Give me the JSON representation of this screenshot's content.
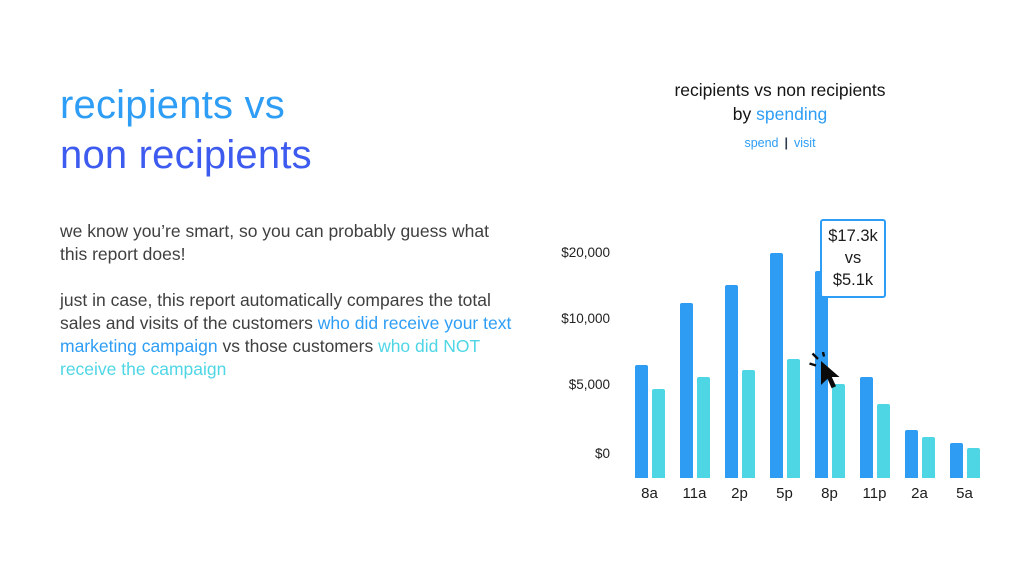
{
  "colors": {
    "blue": "#2e9df5",
    "indigo": "#3e5bf0",
    "cyan": "#4fd6e5",
    "recipients": "#2f9cf4",
    "non_recipients": "#4fd6e5"
  },
  "left": {
    "heading_line1": "recipients vs",
    "heading_line2": "non recipients",
    "para1": "we know you’re smart, so you can probably guess what this report does!",
    "para2_segments": [
      {
        "text": "just in case, this report automatically compares the total sales and visits of the customers ",
        "style": "normal"
      },
      {
        "text": "who did receive your text marketing campaign",
        "style": "blue"
      },
      {
        "text": " vs those customers ",
        "style": "normal"
      },
      {
        "text": "who did NOT receive the campaign",
        "style": "cyan"
      }
    ]
  },
  "chart_header": {
    "title": "recipients vs non recipients",
    "subtitle_prefix": "by ",
    "subtitle_highlight": "spending",
    "legend_spend": "spend",
    "legend_divider": "|",
    "legend_visit": "visit"
  },
  "chart_data": {
    "type": "bar",
    "title": "recipients vs non recipients by spending",
    "categories": [
      "8a",
      "11a",
      "2p",
      "5p",
      "8p",
      "11p",
      "2a",
      "5a"
    ],
    "series": [
      {
        "name": "recipients spend",
        "color_key": "recipients",
        "values": [
          6500,
          12400,
          15200,
          20000,
          17300,
          5600,
          2600,
          1900
        ]
      },
      {
        "name": "non recipients spend",
        "color_key": "non_recipients",
        "values": [
          4800,
          5600,
          6100,
          7000,
          5100,
          4000,
          2200,
          1600
        ]
      }
    ],
    "y_axis": {
      "ticks": [
        {
          "label": "$0",
          "value": 0
        },
        {
          "label": "$5,000",
          "value": 5000
        },
        {
          "label": "$10,000",
          "value": 10000
        },
        {
          "label": "$20,000",
          "value": 20000
        }
      ],
      "scale": "piecewise",
      "scale_note": "equal visual spacing between $0, $5,000, $10,000, $20,000"
    },
    "tooltip": {
      "category": "8p",
      "value_recipients": "$17.3k",
      "separator": "vs",
      "value_non_recipients": "$5.1k"
    },
    "legend_position": "top",
    "grid": false
  }
}
